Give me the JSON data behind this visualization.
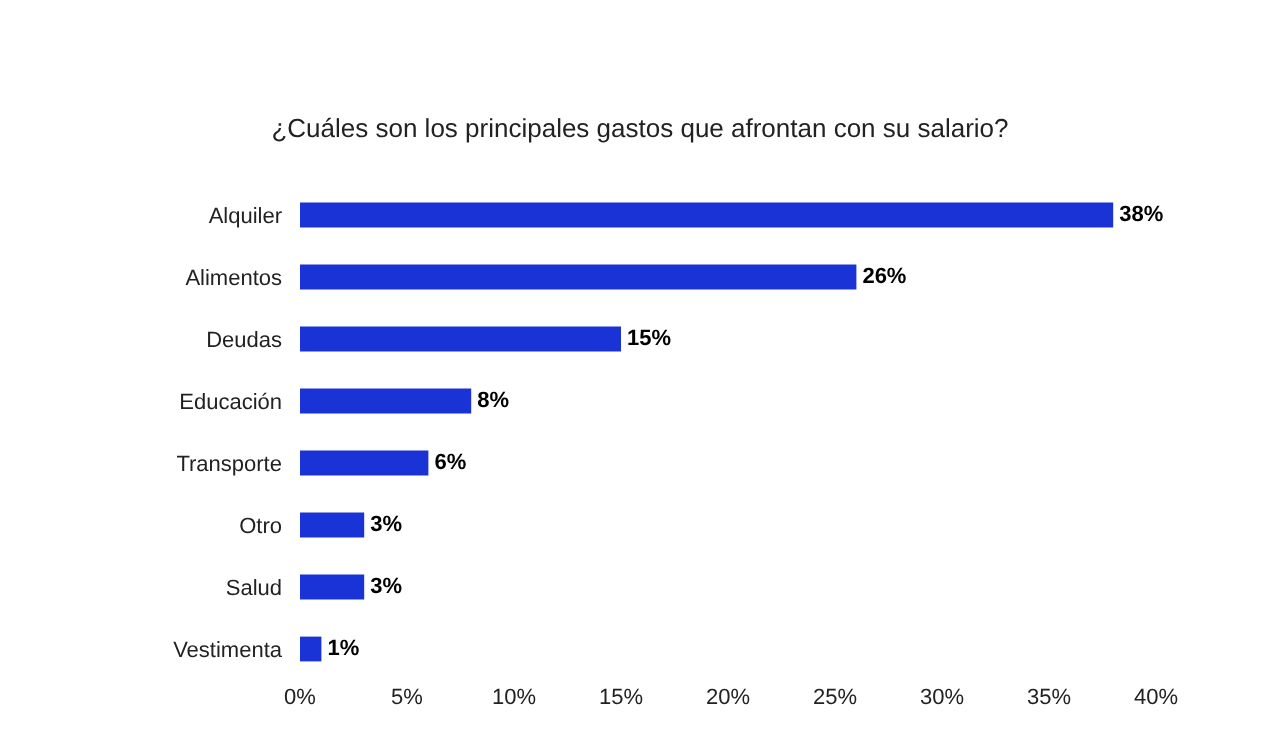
{
  "chart_data": {
    "type": "bar",
    "orientation": "horizontal",
    "title": "¿Cuáles son los principales gastos que afrontan con su salario?",
    "categories": [
      "Alquiler",
      "Alimentos",
      "Deudas",
      "Educación",
      "Transporte",
      "Otro",
      "Salud",
      "Vestimenta"
    ],
    "values": [
      38,
      26,
      15,
      8,
      6,
      3,
      3,
      1
    ],
    "value_labels": [
      "38%",
      "26%",
      "15%",
      "8%",
      "6%",
      "3%",
      "3%",
      "1%"
    ],
    "color": "#1a33d6",
    "xlim": [
      0,
      40
    ],
    "xticks": [
      {
        "value": 0,
        "label": "0%"
      },
      {
        "value": 5,
        "label": "5%"
      },
      {
        "value": 10,
        "label": "10%"
      },
      {
        "value": 15,
        "label": "15%"
      },
      {
        "value": 20,
        "label": "20%"
      },
      {
        "value": 25,
        "label": "25%"
      },
      {
        "value": 30,
        "label": "30%"
      },
      {
        "value": 35,
        "label": "35%"
      },
      {
        "value": 40,
        "label": "40%"
      }
    ],
    "grid": false
  }
}
